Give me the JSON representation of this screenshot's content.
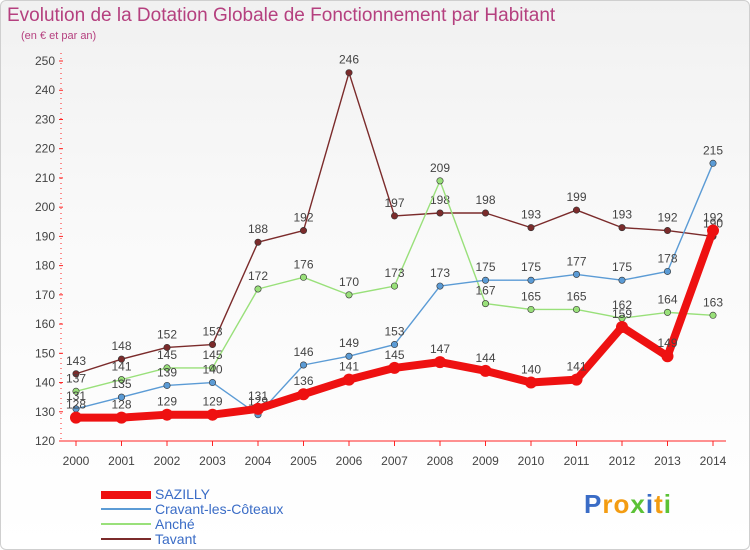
{
  "title": "Evolution de la Dotation Globale de Fonctionnement par Habitant",
  "subtitle": "(en € et par an)",
  "logo": "Proxiti",
  "chart_data": {
    "type": "line",
    "title": "Evolution de la Dotation Globale de Fonctionnement par Habitant",
    "subtitle": "(en € et par an)",
    "x": [
      "2000",
      "2001",
      "2002",
      "2003",
      "2004",
      "2005",
      "2006",
      "2007",
      "2008",
      "2009",
      "2010",
      "2011",
      "2012",
      "2013",
      "2014"
    ],
    "ylim": [
      120,
      250
    ],
    "yticks": [
      120,
      130,
      140,
      150,
      160,
      170,
      180,
      190,
      200,
      210,
      220,
      230,
      240,
      250
    ],
    "grid": false,
    "legend_position": "bottom-left",
    "series": [
      {
        "name": "Tavant",
        "color": "#7b2b2b",
        "values": [
          143,
          148,
          152,
          153,
          188,
          192,
          246,
          197,
          198,
          198,
          193,
          199,
          193,
          192,
          190
        ]
      },
      {
        "name": "Anché",
        "color": "#99e07a",
        "values": [
          137,
          141,
          145,
          145,
          172,
          176,
          170,
          173,
          209,
          167,
          165,
          165,
          162,
          164,
          163
        ]
      },
      {
        "name": "Cravant-les-Côteaux",
        "color": "#5b9bd5",
        "values": [
          131,
          135,
          139,
          140,
          129,
          146,
          149,
          153,
          173,
          175,
          175,
          177,
          175,
          178,
          215
        ]
      },
      {
        "name": "SAZILLY",
        "color": "#ee1111",
        "values": [
          128,
          128,
          129,
          129,
          131,
          136,
          141,
          145,
          147,
          144,
          140,
          141,
          159,
          149,
          192
        ]
      }
    ],
    "data_labels": {
      "Tavant": [
        "143",
        "148",
        "152",
        "153",
        "188",
        "192",
        "246",
        "197",
        "198",
        "198",
        "193",
        "199",
        "193",
        "192",
        "190"
      ],
      "Anché": [
        "137",
        "141",
        "145",
        "145",
        "172",
        "176",
        "170",
        "173",
        "209",
        "167",
        "165",
        "165",
        "162",
        "164",
        "163"
      ],
      "Cravant-les-Côteaux": [
        "131",
        "135",
        "139",
        "140",
        "129",
        "146",
        "149",
        "153",
        "173",
        "175",
        "175",
        "177",
        "175",
        "178",
        "215"
      ],
      "SAZILLY": [
        "128",
        "128",
        "129",
        "129",
        "131",
        "136",
        "141",
        "145",
        "147",
        "144",
        "140",
        "141",
        "159",
        "149",
        "192"
      ]
    }
  },
  "legend": [
    {
      "name": "SAZILLY",
      "color": "#ee1111"
    },
    {
      "name": "Cravant-les-Côteaux",
      "color": "#5b9bd5"
    },
    {
      "name": "Anché",
      "color": "#99e07a"
    },
    {
      "name": "Tavant",
      "color": "#7b2b2b"
    }
  ]
}
